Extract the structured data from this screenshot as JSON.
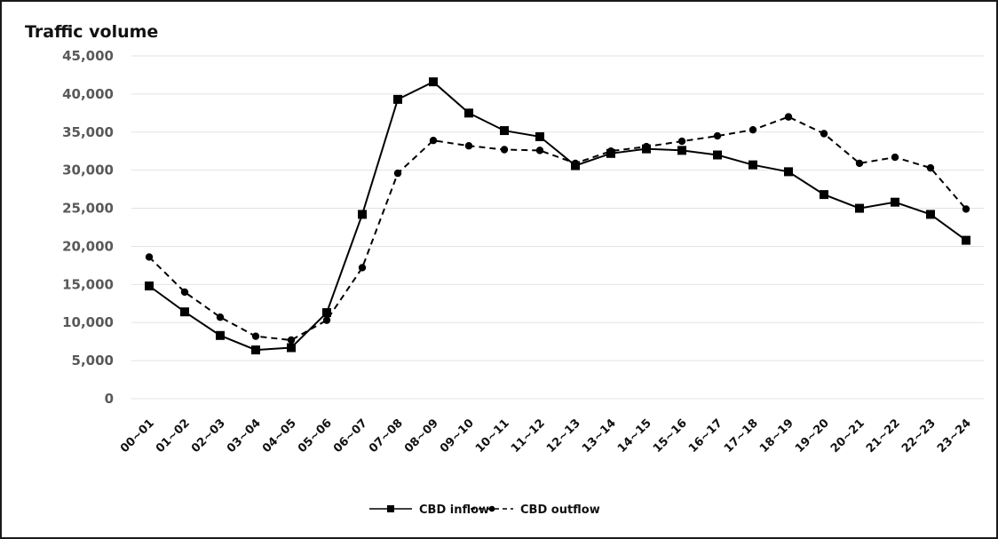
{
  "chart_data": {
    "type": "line",
    "ylabel": "Traffic volume",
    "xlabel": "",
    "ylim": [
      0,
      45000
    ],
    "yticks": [
      0,
      5000,
      10000,
      15000,
      20000,
      25000,
      30000,
      35000,
      40000,
      45000
    ],
    "ytick_labels": [
      "0",
      "5,000",
      "10,000",
      "15,000",
      "20,000",
      "25,000",
      "30,000",
      "35,000",
      "40,000",
      "45,000"
    ],
    "grid": true,
    "legend_position": "bottom-center",
    "categories": [
      "00~01",
      "01~02",
      "02~03",
      "03~04",
      "04~05",
      "05~06",
      "06~07",
      "07~08",
      "08~09",
      "09~10",
      "10~11",
      "11~12",
      "12~13",
      "13~14",
      "14~15",
      "15~16",
      "16~17",
      "17~18",
      "18~19",
      "19~20",
      "20~21",
      "21~22",
      "22~23",
      "23~24"
    ],
    "series": [
      {
        "name": "CBD inflow",
        "line_style": "solid",
        "marker": "square",
        "color": "#000000",
        "values": [
          14800,
          11400,
          8300,
          6400,
          6700,
          11300,
          24200,
          39300,
          41600,
          37500,
          35200,
          34400,
          30600,
          32200,
          32800,
          32600,
          32000,
          30700,
          29800,
          26800,
          25000,
          25800,
          24200,
          20800
        ]
      },
      {
        "name": "CBD outflow",
        "line_style": "dashed",
        "marker": "circle",
        "color": "#000000",
        "values": [
          18600,
          14000,
          10700,
          8200,
          7700,
          10300,
          17200,
          29600,
          33900,
          33200,
          32700,
          32600,
          30900,
          32500,
          33100,
          33800,
          34500,
          35300,
          37000,
          34800,
          30900,
          31700,
          30300,
          24900
        ]
      }
    ]
  }
}
